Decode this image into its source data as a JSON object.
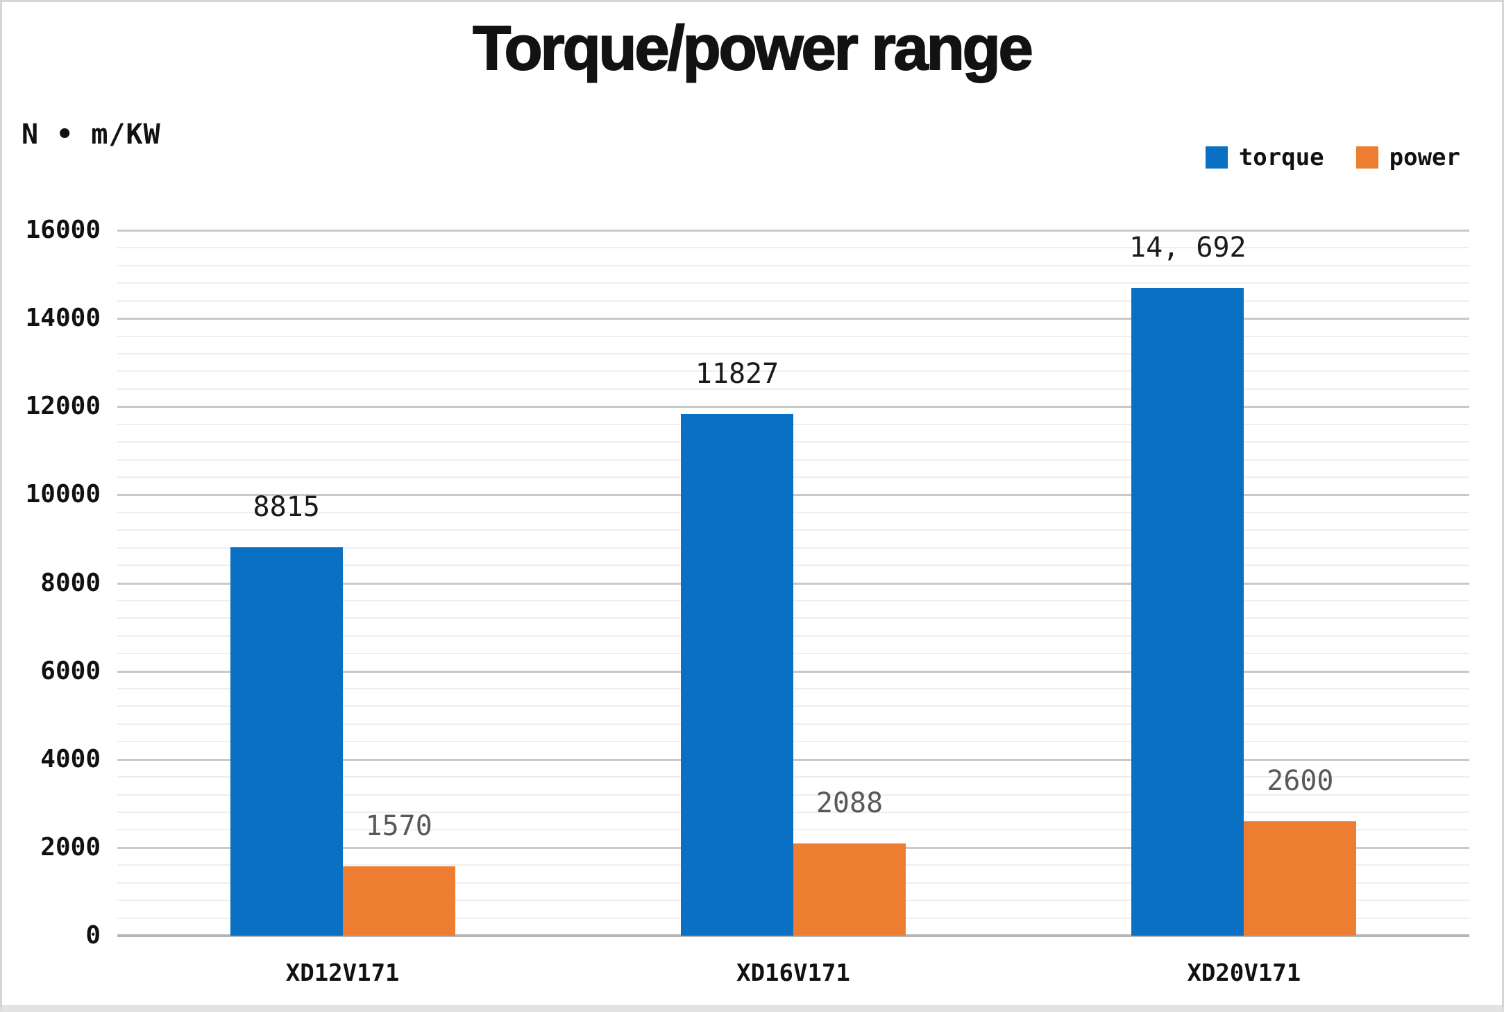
{
  "chart_data": {
    "type": "bar",
    "title": "Torque/power range",
    "unit_label": "N • m/KW",
    "categories": [
      "XD12V171",
      "XD16V171",
      "XD20V171"
    ],
    "series": [
      {
        "name": "torque",
        "color": "#0a70c4",
        "label_color": "#1a1a1a",
        "values": [
          8815,
          11827,
          14692
        ],
        "value_labels": [
          "8815",
          "11827",
          "14, 692"
        ]
      },
      {
        "name": "power",
        "color": "#ec7d31",
        "label_color": "#595959",
        "values": [
          1570,
          2088,
          2600
        ],
        "value_labels": [
          "1570",
          "2088",
          "2600"
        ]
      }
    ],
    "ylim": [
      0,
      16000
    ],
    "y_major_step": 2000,
    "y_minor_step": 400,
    "y_tick_labels": [
      "0",
      "2000",
      "4000",
      "6000",
      "8000",
      "10000",
      "12000",
      "14000",
      "16000"
    ],
    "grid": true,
    "legend_position": "top-right"
  }
}
